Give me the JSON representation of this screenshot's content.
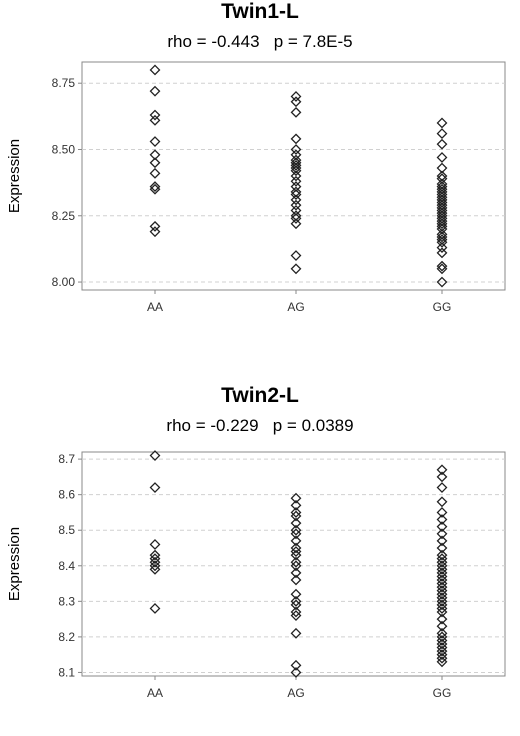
{
  "chart_data": [
    {
      "type": "scatter",
      "title": "Twin1-L",
      "subtitle": "rho = -0.443   p = 7.8E-5",
      "xlabel": "",
      "ylabel": "Expression",
      "categories": [
        "AA",
        "AG",
        "GG"
      ],
      "ylim": [
        7.97,
        8.83
      ],
      "yticks": [
        8.0,
        8.25,
        8.5,
        8.75
      ],
      "grid": true,
      "series": [
        {
          "category": "AA",
          "values": [
            8.8,
            8.72,
            8.63,
            8.61,
            8.53,
            8.48,
            8.45,
            8.41,
            8.36,
            8.35,
            8.21,
            8.19
          ]
        },
        {
          "category": "AG",
          "values": [
            8.7,
            8.68,
            8.64,
            8.54,
            8.5,
            8.48,
            8.46,
            8.45,
            8.44,
            8.43,
            8.42,
            8.4,
            8.38,
            8.36,
            8.34,
            8.33,
            8.31,
            8.29,
            8.27,
            8.25,
            8.24,
            8.22,
            8.1,
            8.05
          ]
        },
        {
          "category": "GG",
          "values": [
            8.6,
            8.56,
            8.52,
            8.47,
            8.43,
            8.4,
            8.39,
            8.37,
            8.36,
            8.35,
            8.34,
            8.33,
            8.32,
            8.31,
            8.3,
            8.29,
            8.28,
            8.27,
            8.26,
            8.25,
            8.24,
            8.23,
            8.22,
            8.21,
            8.2,
            8.18,
            8.17,
            8.16,
            8.15,
            8.13,
            8.11,
            8.06,
            8.05,
            8.0
          ]
        }
      ]
    },
    {
      "type": "scatter",
      "title": "Twin2-L",
      "subtitle": "rho = -0.229   p = 0.0389",
      "xlabel": "",
      "ylabel": "Expression",
      "categories": [
        "AA",
        "AG",
        "GG"
      ],
      "ylim": [
        8.09,
        8.72
      ],
      "yticks": [
        8.1,
        8.2,
        8.3,
        8.4,
        8.5,
        8.6,
        8.7
      ],
      "grid": true,
      "series": [
        {
          "category": "AA",
          "values": [
            8.71,
            8.62,
            8.46,
            8.43,
            8.42,
            8.41,
            8.4,
            8.39,
            8.28
          ]
        },
        {
          "category": "AG",
          "values": [
            8.59,
            8.57,
            8.55,
            8.54,
            8.52,
            8.5,
            8.49,
            8.47,
            8.45,
            8.44,
            8.43,
            8.41,
            8.4,
            8.38,
            8.36,
            8.32,
            8.3,
            8.29,
            8.27,
            8.26,
            8.21,
            8.12,
            8.1
          ]
        },
        {
          "category": "GG",
          "values": [
            8.67,
            8.65,
            8.62,
            8.58,
            8.55,
            8.53,
            8.51,
            8.49,
            8.47,
            8.45,
            8.43,
            8.42,
            8.41,
            8.4,
            8.39,
            8.38,
            8.37,
            8.36,
            8.35,
            8.34,
            8.33,
            8.32,
            8.31,
            8.3,
            8.29,
            8.28,
            8.27,
            8.25,
            8.23,
            8.21,
            8.2,
            8.19,
            8.18,
            8.17,
            8.16,
            8.15,
            8.14,
            8.13
          ]
        }
      ]
    }
  ]
}
